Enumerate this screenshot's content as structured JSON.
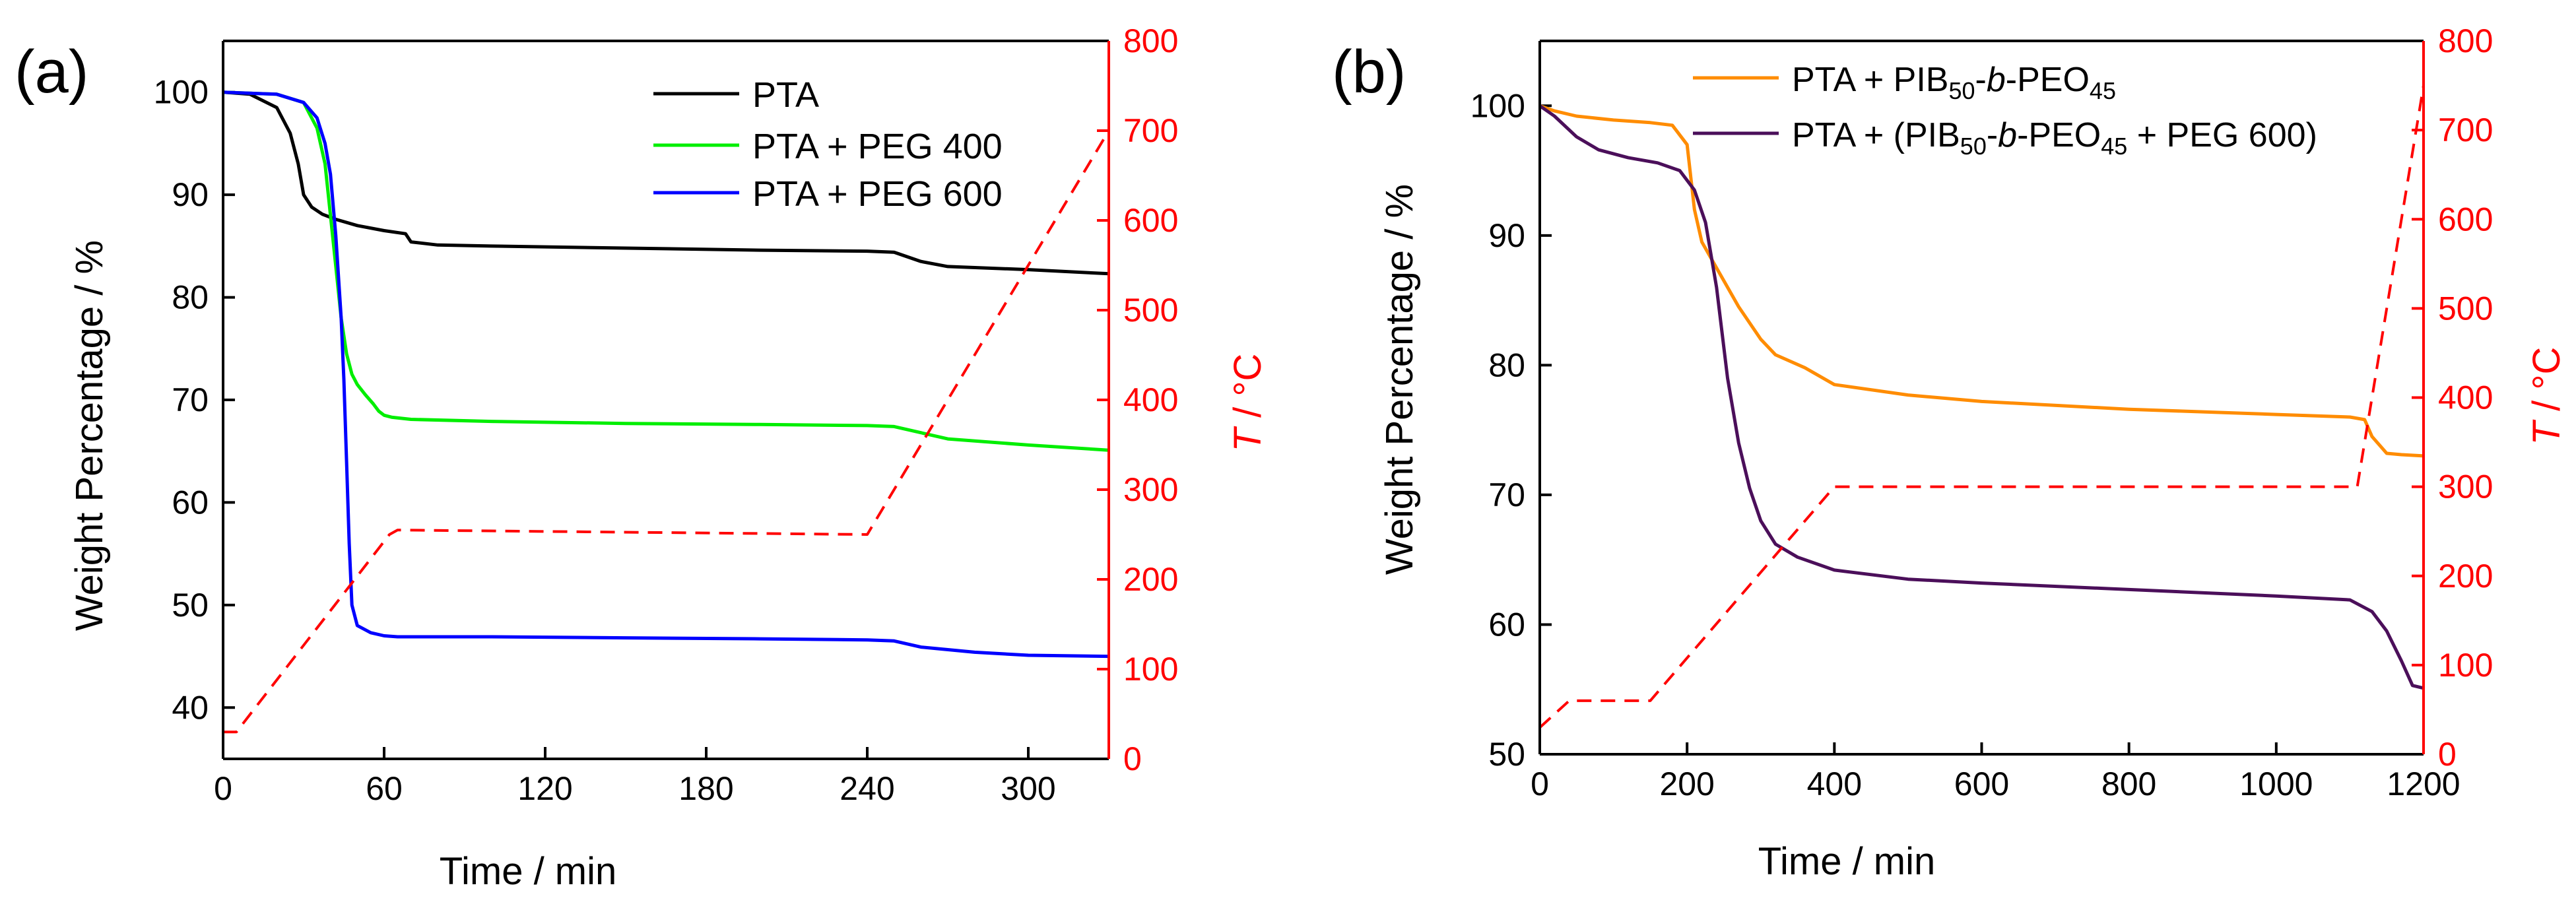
{
  "chart_data": [
    {
      "type": "line",
      "panel_label": "(a)",
      "xlabel": "Time / min",
      "ylabel": "Weight Percentage / %",
      "y2label": {
        "italic": "T",
        "rest": " / °C"
      },
      "xlim": [
        0,
        330
      ],
      "ylim": [
        35,
        105
      ],
      "y2lim": [
        0,
        800
      ],
      "xticks": [
        0,
        60,
        120,
        180,
        240,
        300
      ],
      "yticks": [
        40,
        50,
        60,
        70,
        80,
        90,
        100
      ],
      "y2ticks": [
        0,
        100,
        200,
        300,
        400,
        500,
        600,
        700,
        800
      ],
      "legend_position": "top-right",
      "colors": {
        "axis": "#000000",
        "temperature": "#ff0000"
      },
      "series": [
        {
          "name": "PTA",
          "legend": "PTA",
          "color": "#000000",
          "x": [
            0,
            10,
            20,
            25,
            28,
            30,
            33,
            37,
            42,
            50,
            60,
            68,
            70,
            80,
            100,
            150,
            200,
            240,
            250,
            260,
            270,
            300,
            330
          ],
          "y": [
            100,
            99.8,
            98.5,
            96,
            93,
            90,
            88.8,
            88.1,
            87.6,
            87,
            86.5,
            86.2,
            85.4,
            85.1,
            85,
            84.8,
            84.6,
            84.5,
            84.4,
            83.5,
            83,
            82.7,
            82.3
          ]
        },
        {
          "name": "PTA + PEG 400",
          "legend": "PTA + PEG 400",
          "color": "#00ee00",
          "x": [
            0,
            20,
            30,
            35,
            38,
            40,
            42,
            44,
            46,
            48,
            50,
            53,
            56,
            58,
            60,
            63,
            70,
            100,
            150,
            200,
            240,
            250,
            270,
            300,
            330
          ],
          "y": [
            100,
            99.8,
            99,
            96.5,
            93,
            88,
            83,
            78,
            74.5,
            72.5,
            71.5,
            70.5,
            69.6,
            68.9,
            68.5,
            68.3,
            68.1,
            67.9,
            67.7,
            67.6,
            67.5,
            67.4,
            66.2,
            65.6,
            65.1
          ]
        },
        {
          "name": "PTA + PEG 600",
          "legend": "PTA + PEG 600",
          "color": "#0000ff",
          "x": [
            0,
            20,
            30,
            35,
            38,
            40,
            42,
            44,
            45,
            46,
            47,
            48,
            50,
            55,
            60,
            65,
            100,
            150,
            200,
            240,
            250,
            260,
            280,
            300,
            330
          ],
          "y": [
            100,
            99.8,
            99,
            97.5,
            95,
            92,
            86,
            78,
            72,
            64,
            56,
            50,
            48,
            47.3,
            47,
            46.9,
            46.9,
            46.8,
            46.7,
            46.6,
            46.5,
            45.9,
            45.4,
            45.1,
            45
          ]
        },
        {
          "name": "Temperature",
          "axis": "right",
          "dashed": true,
          "color": "#ff0000",
          "x": [
            0,
            5,
            62,
            65,
            240,
            330
          ],
          "y": [
            30,
            30,
            250,
            255,
            250,
            700
          ]
        }
      ]
    },
    {
      "type": "line",
      "panel_label": "(b)",
      "xlabel": "Time / min",
      "ylabel": "Weight Percentage / %",
      "y2label": {
        "italic": "T",
        "rest": " / °C"
      },
      "xlim": [
        0,
        1200
      ],
      "ylim": [
        50,
        105
      ],
      "y2lim": [
        0,
        800
      ],
      "xticks": [
        0,
        200,
        400,
        600,
        800,
        1000,
        1200
      ],
      "yticks": [
        50,
        60,
        70,
        80,
        90,
        100
      ],
      "y2ticks": [
        0,
        100,
        200,
        300,
        400,
        500,
        600,
        700,
        800
      ],
      "legend_position": "top",
      "colors": {
        "axis": "#000000",
        "temperature": "#ff0000"
      },
      "series": [
        {
          "name": "PTA + PIB50-b-PEO45",
          "legend_parts": [
            "PTA + PIB",
            "50",
            "-",
            "b",
            "-PEO",
            "45"
          ],
          "color": "#ff8c00",
          "x": [
            0,
            20,
            50,
            100,
            150,
            180,
            200,
            210,
            220,
            240,
            270,
            300,
            320,
            360,
            400,
            500,
            600,
            800,
            1000,
            1100,
            1120,
            1130,
            1150,
            1170,
            1200
          ],
          "y": [
            100,
            99.6,
            99.2,
            98.9,
            98.7,
            98.5,
            97,
            92,
            89.5,
            87.5,
            84.5,
            82,
            80.8,
            79.8,
            78.5,
            77.7,
            77.2,
            76.6,
            76.2,
            76,
            75.8,
            74.5,
            73.2,
            73.1,
            73
          ]
        },
        {
          "name": "PTA + (PIB50-b-PEO45 + PEG 600)",
          "legend_parts": [
            "PTA + (PIB",
            "50",
            "-",
            "b",
            "-PEO",
            "45",
            " + PEG 600)"
          ],
          "color": "#4b0f5a",
          "x": [
            0,
            20,
            50,
            80,
            120,
            160,
            190,
            210,
            225,
            240,
            255,
            270,
            285,
            300,
            320,
            350,
            400,
            500,
            600,
            800,
            1000,
            1100,
            1130,
            1150,
            1170,
            1185,
            1200
          ],
          "y": [
            100,
            99.2,
            97.6,
            96.6,
            96,
            95.6,
            95,
            93.5,
            91,
            86,
            79,
            74,
            70.5,
            68,
            66.2,
            65.2,
            64.2,
            63.5,
            63.2,
            62.7,
            62.2,
            61.9,
            61,
            59.5,
            57.2,
            55.3,
            55.1
          ]
        },
        {
          "name": "Temperature",
          "axis": "right",
          "dashed": true,
          "color": "#ff0000",
          "x": [
            0,
            40,
            150,
            400,
            1110,
            1200
          ],
          "y": [
            30,
            60,
            60,
            300,
            300,
            750
          ]
        }
      ]
    }
  ]
}
